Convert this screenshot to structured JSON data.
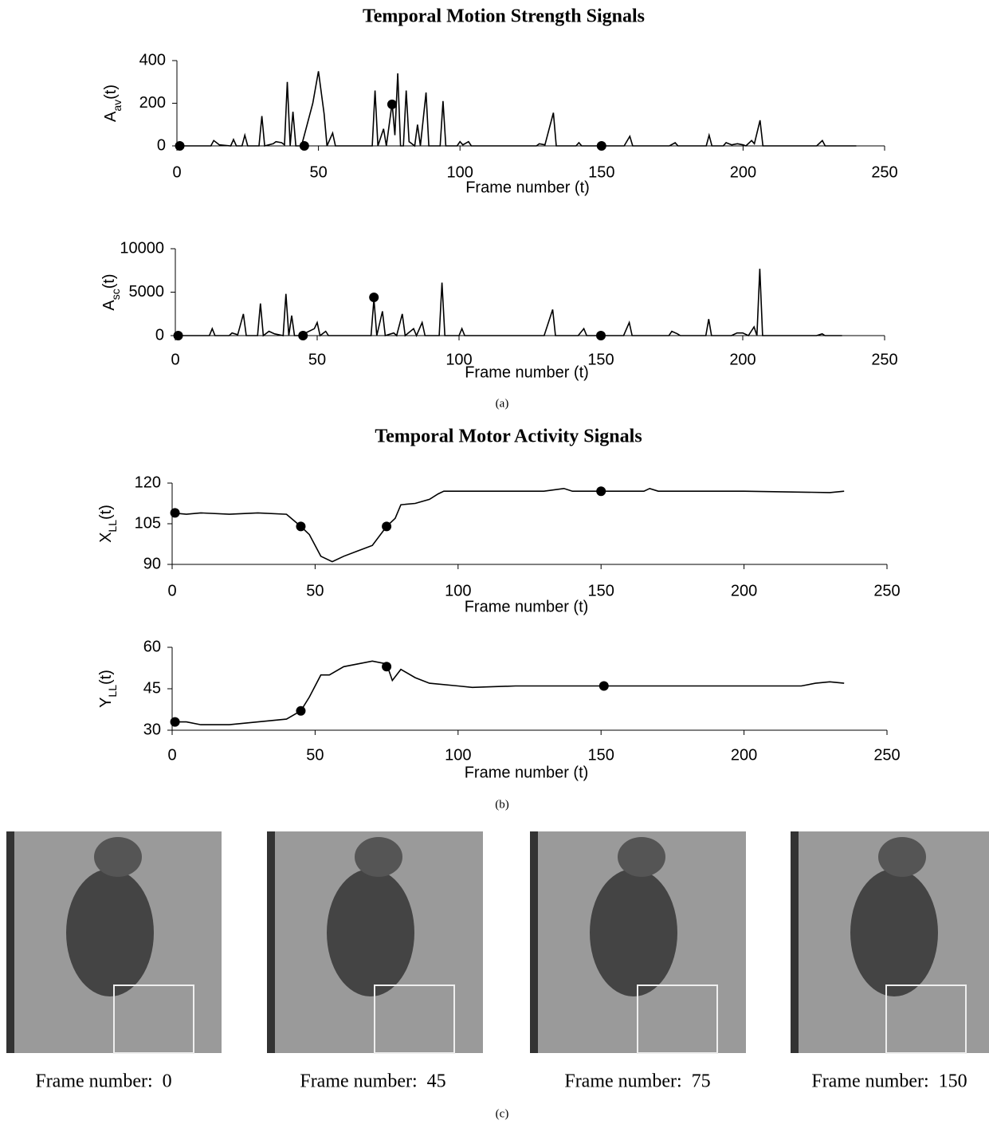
{
  "figure": {
    "titles": [
      "Temporal Motion Strength Signals",
      "Temporal Motor Activity Signals"
    ],
    "captions": [
      "(a)",
      "(b)",
      "(c)"
    ],
    "frames": [
      "Frame number:  0",
      "Frame number:  45",
      "Frame number:  75",
      "Frame number:  150"
    ]
  },
  "chart_data": [
    {
      "type": "line",
      "ylabel": [
        "A",
        "av",
        "(t)"
      ],
      "xlabel": "Frame number (t)",
      "xlim": [
        0,
        250
      ],
      "xticks": [
        0,
        50,
        100,
        150,
        200,
        250
      ],
      "ylim": [
        0,
        400
      ],
      "yticks": [
        0,
        200,
        400
      ],
      "series": [
        {
          "color": "#000000",
          "x": [
            0,
            12,
            13,
            15,
            19,
            20,
            21,
            23,
            24,
            25,
            29,
            30,
            31,
            34,
            35,
            37,
            38,
            39,
            40,
            41,
            42,
            44,
            48,
            50,
            52,
            53,
            55,
            56,
            69,
            70,
            71,
            73,
            74,
            76,
            77,
            78,
            79,
            80,
            81,
            82,
            84,
            85,
            86,
            88,
            89,
            93,
            94,
            95,
            99,
            100,
            101,
            103,
            104,
            127,
            128,
            130,
            133,
            134,
            141,
            142,
            143,
            158,
            160,
            161,
            174,
            176,
            177,
            187,
            188,
            189,
            193,
            194,
            196,
            198,
            200,
            201,
            203,
            204,
            206,
            207,
            226,
            228,
            229,
            240
          ],
          "values": [
            0,
            0,
            25,
            5,
            0,
            30,
            0,
            0,
            50,
            0,
            0,
            140,
            0,
            10,
            20,
            15,
            5,
            300,
            0,
            160,
            0,
            0,
            200,
            350,
            150,
            0,
            60,
            0,
            0,
            260,
            0,
            80,
            0,
            200,
            50,
            340,
            0,
            0,
            260,
            20,
            0,
            100,
            0,
            250,
            0,
            0,
            210,
            0,
            0,
            20,
            5,
            20,
            0,
            0,
            10,
            5,
            155,
            0,
            0,
            15,
            0,
            0,
            45,
            0,
            0,
            15,
            0,
            0,
            50,
            0,
            0,
            15,
            5,
            10,
            5,
            0,
            25,
            10,
            120,
            0,
            0,
            25,
            0,
            0
          ]
        }
      ],
      "markers": {
        "color": "#000000",
        "x": [
          1,
          45,
          76,
          150
        ],
        "values": [
          0,
          0,
          195,
          0
        ]
      }
    },
    {
      "type": "line",
      "ylabel": [
        "A",
        "sc",
        "(t)"
      ],
      "xlabel": "Frame number (t)",
      "xlim": [
        0,
        250
      ],
      "xticks": [
        0,
        50,
        100,
        150,
        200,
        250
      ],
      "ylim": [
        0,
        10000
      ],
      "yticks": [
        0,
        5000,
        10000
      ],
      "series": [
        {
          "color": "#000000",
          "x": [
            0,
            12,
            13,
            14,
            19,
            20,
            22,
            24,
            25,
            29,
            30,
            31,
            33,
            35,
            38,
            39,
            40,
            41,
            42,
            44,
            49,
            50,
            51,
            53,
            54,
            69,
            70,
            71,
            73,
            74,
            77,
            78,
            80,
            81,
            84,
            85,
            87,
            88,
            93,
            94,
            95,
            100,
            101,
            102,
            130,
            133,
            134,
            142,
            144,
            145,
            158,
            160,
            161,
            174,
            175,
            177,
            178,
            187,
            188,
            189,
            196,
            198,
            200,
            202,
            204,
            205,
            206,
            207,
            226,
            228,
            229,
            235
          ],
          "values": [
            0,
            0,
            800,
            0,
            0,
            300,
            100,
            2500,
            0,
            0,
            3700,
            0,
            500,
            200,
            0,
            4800,
            0,
            2300,
            0,
            0,
            800,
            1500,
            0,
            500,
            0,
            0,
            4200,
            0,
            2800,
            0,
            300,
            0,
            2500,
            0,
            800,
            0,
            1500,
            0,
            0,
            6100,
            0,
            0,
            800,
            0,
            0,
            3000,
            0,
            0,
            800,
            0,
            0,
            1500,
            0,
            0,
            500,
            200,
            0,
            0,
            1900,
            0,
            0,
            300,
            300,
            0,
            1000,
            0,
            7700,
            0,
            0,
            200,
            0,
            0
          ]
        }
      ],
      "markers": {
        "color": "#000000",
        "x": [
          1,
          45,
          70,
          150
        ],
        "values": [
          0,
          0,
          4400,
          0
        ]
      }
    },
    {
      "type": "line",
      "ylabel": [
        "X",
        "LL",
        "(t)"
      ],
      "xlabel": "Frame number (t)",
      "xlim": [
        0,
        250
      ],
      "xticks": [
        0,
        50,
        100,
        150,
        200,
        250
      ],
      "ylim": [
        90,
        120
      ],
      "yticks": [
        90,
        105,
        120
      ],
      "series": [
        {
          "color": "#000000",
          "x": [
            0,
            5,
            10,
            20,
            30,
            40,
            45,
            48,
            52,
            56,
            60,
            65,
            70,
            75,
            78,
            80,
            85,
            90,
            93,
            95,
            100,
            130,
            137,
            140,
            150,
            165,
            167,
            170,
            200,
            230,
            235
          ],
          "values": [
            109,
            108.5,
            109,
            108.5,
            109,
            108.5,
            104,
            101,
            93,
            91,
            93,
            95,
            97,
            104,
            107,
            112,
            112.5,
            114,
            116,
            117,
            117,
            117,
            118,
            117,
            117,
            117,
            118,
            117,
            117,
            116.5,
            117
          ]
        }
      ],
      "markers": {
        "color": "#000000",
        "x": [
          1,
          45,
          75,
          150
        ],
        "values": [
          109,
          104,
          104,
          117
        ]
      }
    },
    {
      "type": "line",
      "ylabel": [
        "Y",
        "LL",
        "(t)"
      ],
      "xlabel": "Frame number (t)",
      "xlim": [
        0,
        250
      ],
      "xticks": [
        0,
        50,
        100,
        150,
        200,
        250
      ],
      "ylim": [
        30,
        60
      ],
      "yticks": [
        30,
        45,
        60
      ],
      "series": [
        {
          "color": "#000000",
          "x": [
            0,
            5,
            10,
            20,
            30,
            40,
            45,
            48,
            52,
            55,
            60,
            70,
            75,
            77,
            80,
            85,
            90,
            100,
            105,
            120,
            150,
            200,
            220,
            225,
            230,
            235
          ],
          "values": [
            33,
            33,
            32,
            32,
            33,
            34,
            37,
            42,
            50,
            50,
            53,
            55,
            54,
            48,
            52,
            49,
            47,
            46,
            45.5,
            46,
            46,
            46,
            46,
            47,
            47.5,
            47
          ]
        }
      ],
      "markers": {
        "color": "#000000",
        "x": [
          1,
          45,
          75,
          151
        ],
        "values": [
          33,
          37,
          53,
          46
        ]
      }
    }
  ]
}
